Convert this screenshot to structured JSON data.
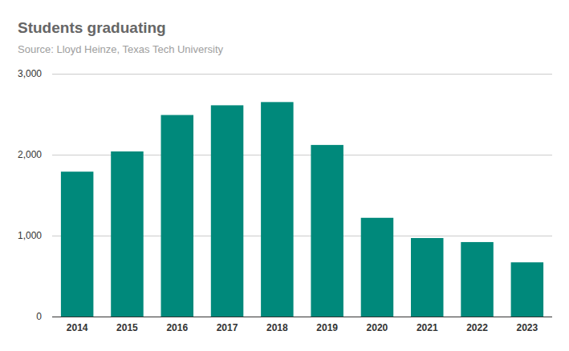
{
  "chart_data": {
    "type": "bar",
    "title": "Students graduating",
    "subtitle": "Source: Lloyd Heinze, Texas Tech University",
    "categories": [
      "2014",
      "2015",
      "2016",
      "2017",
      "2018",
      "2019",
      "2020",
      "2021",
      "2022",
      "2023"
    ],
    "values": [
      1790,
      2040,
      2490,
      2610,
      2650,
      2120,
      1220,
      970,
      920,
      670
    ],
    "color": "#00897b",
    "ylim": [
      0,
      3000
    ],
    "yticks": [
      0,
      {
        "value": 1000,
        "label": "1,000"
      },
      {
        "value": 2000,
        "label": "2,000"
      },
      {
        "value": 3000,
        "label": "3,000"
      }
    ],
    "grid": true
  }
}
